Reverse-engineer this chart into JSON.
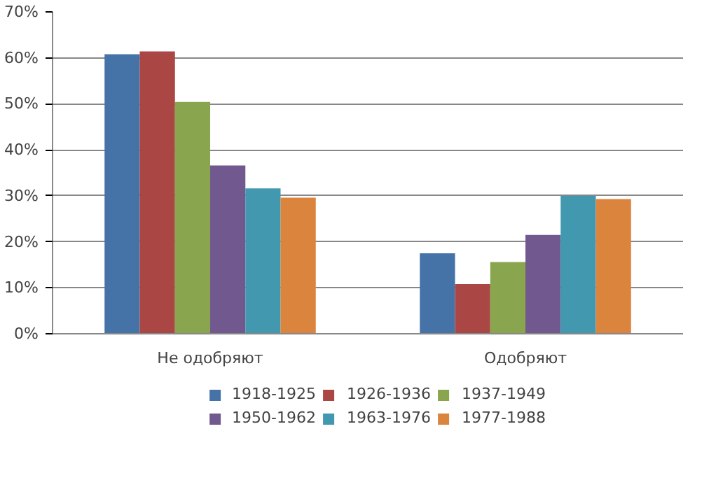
{
  "chart_data": {
    "type": "bar",
    "categories": [
      "Не одобряют",
      "Одобряют"
    ],
    "series": [
      {
        "name": "1918-1925",
        "color": "#4572a7",
        "values": [
          60.8,
          17.5
        ]
      },
      {
        "name": "1926-1936",
        "color": "#aa4643",
        "values": [
          61.4,
          10.8
        ]
      },
      {
        "name": "1937-1949",
        "color": "#89a54e",
        "values": [
          50.4,
          15.6
        ]
      },
      {
        "name": "1950-1962",
        "color": "#71588f",
        "values": [
          36.6,
          21.5
        ]
      },
      {
        "name": "1963-1976",
        "color": "#4198af",
        "values": [
          31.6,
          30.0
        ]
      },
      {
        "name": "1977-1988",
        "color": "#db843d",
        "values": [
          29.6,
          29.3
        ]
      }
    ],
    "ylim": [
      0,
      70
    ],
    "yticks": [
      {
        "value": 0,
        "label": "0%"
      },
      {
        "value": 10,
        "label": "10%"
      },
      {
        "value": 20,
        "label": "20%"
      },
      {
        "value": 30,
        "label": "30%"
      },
      {
        "value": 40,
        "label": "40%"
      },
      {
        "value": 50,
        "label": "50%"
      },
      {
        "value": 60,
        "label": "60%"
      },
      {
        "value": 70,
        "label": "70%"
      }
    ],
    "grid": "y",
    "legend": "bottom"
  }
}
